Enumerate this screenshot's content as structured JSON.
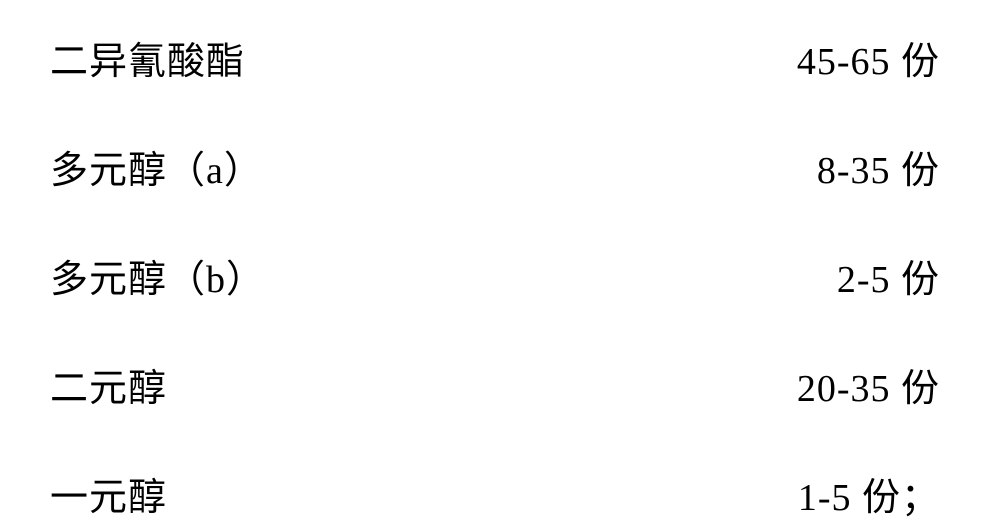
{
  "document": {
    "background_color": "#ffffff",
    "text_color": "#000000",
    "font_family": "SimSun",
    "font_size": 38,
    "rows": [
      {
        "label": "二异氰酸酯",
        "value": "45-65 份"
      },
      {
        "label": "多元醇（a）",
        "value": "8-35 份"
      },
      {
        "label": "多元醇（b）",
        "value": "2-5 份"
      },
      {
        "label": "二元醇",
        "value": "20-35 份"
      },
      {
        "label": "一元醇",
        "value": "1-5 份；"
      }
    ]
  }
}
